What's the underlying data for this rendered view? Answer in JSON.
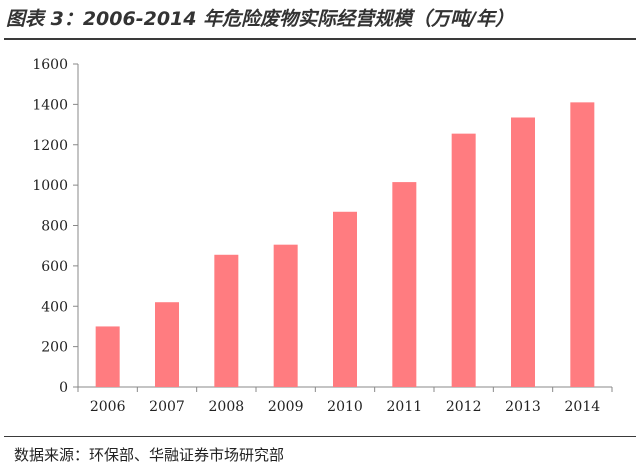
{
  "header": {
    "title": "图表 3：2006-2014 年危险废物实际经营规模（万吨/年）"
  },
  "footer": {
    "source": "数据来源：环保部、华融证券市场研究部"
  },
  "chart_data": {
    "type": "bar",
    "title": "图表 3：2006-2014 年危险废物实际经营规模（万吨/年）",
    "categories": [
      "2006",
      "2007",
      "2008",
      "2009",
      "2010",
      "2011",
      "2012",
      "2013",
      "2014"
    ],
    "values": [
      300,
      420,
      655,
      705,
      868,
      1015,
      1255,
      1335,
      1410
    ],
    "ylim": [
      0,
      1600
    ],
    "yticks": [
      0,
      200,
      400,
      600,
      800,
      1000,
      1200,
      1400,
      1600
    ],
    "grid": false,
    "legend": "none",
    "bar_color": "#ff7c80",
    "axis_color": "#888888"
  }
}
